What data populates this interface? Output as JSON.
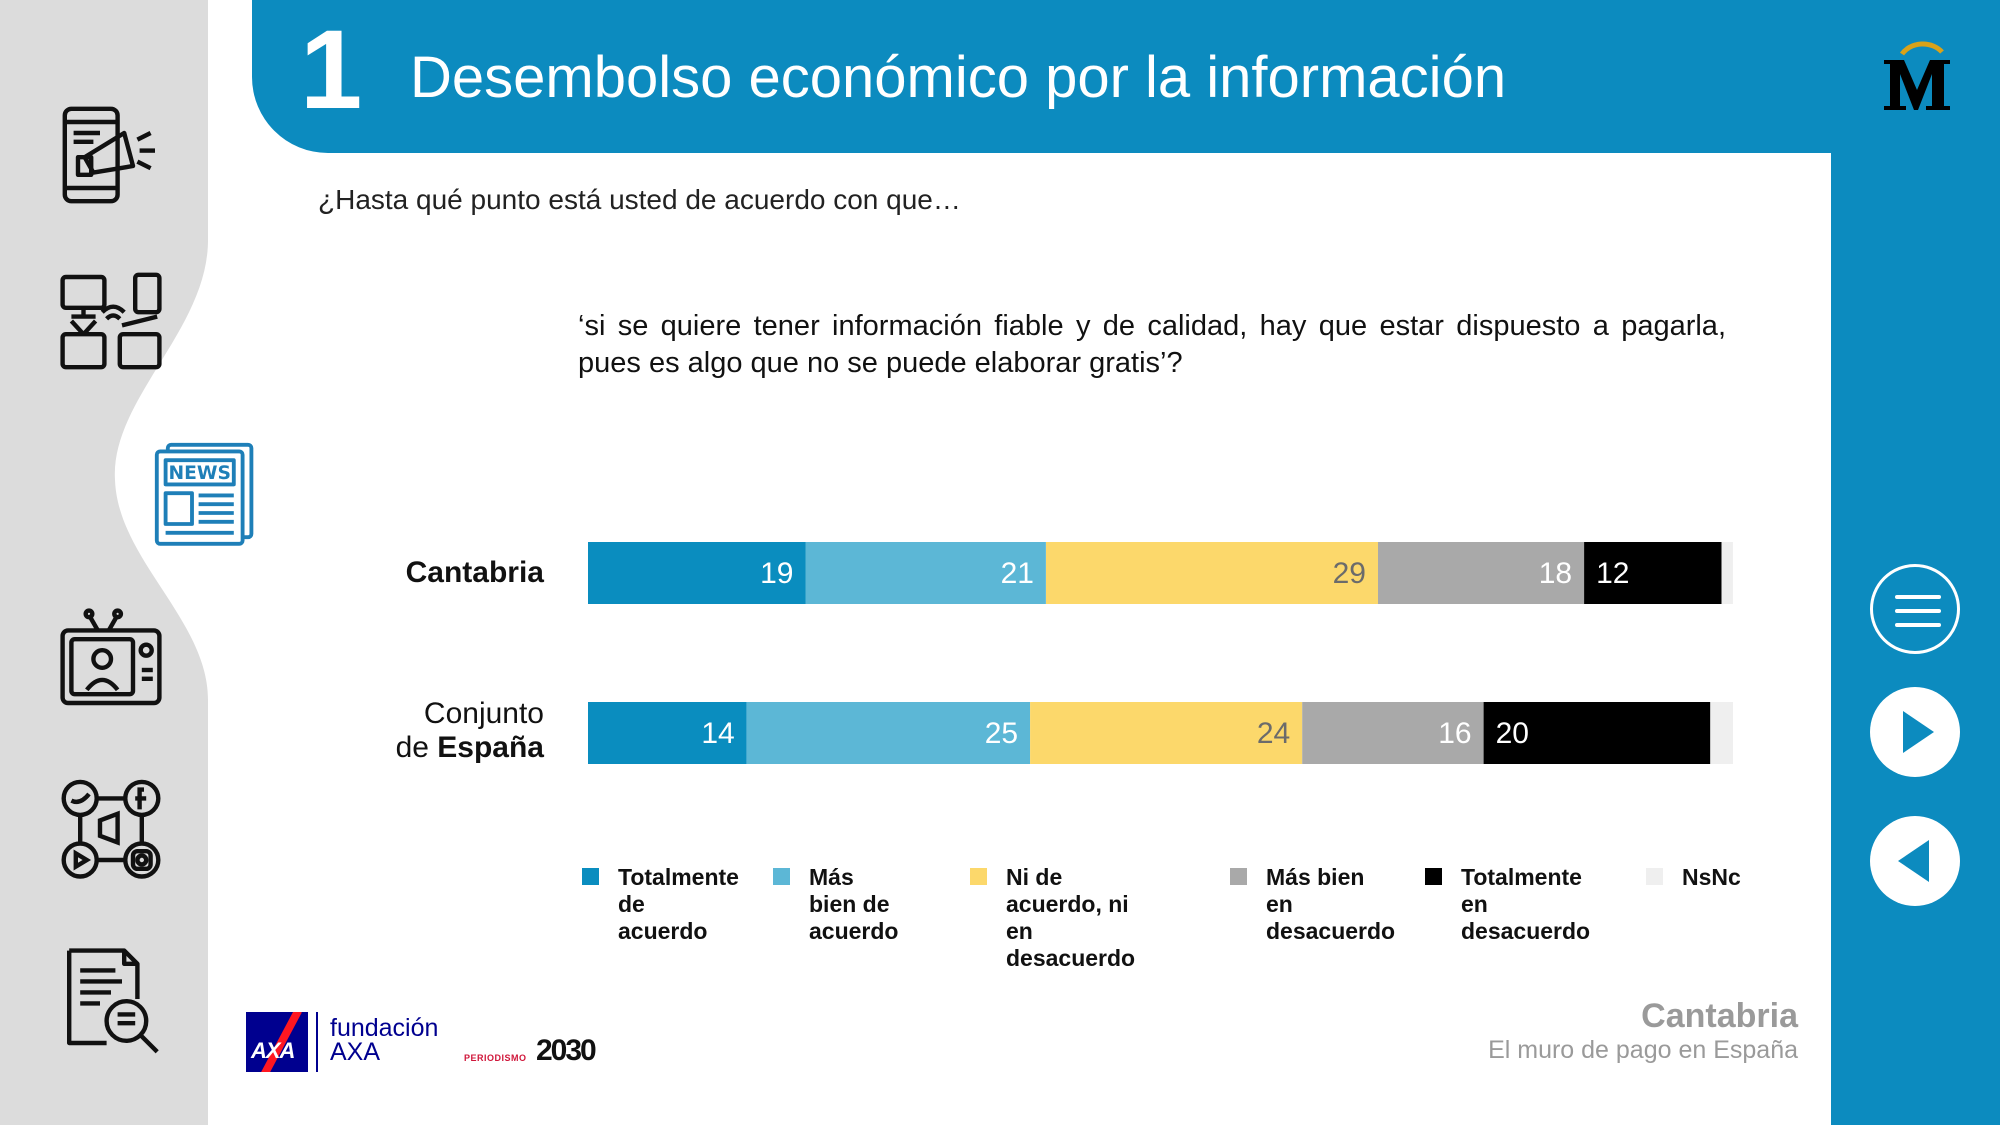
{
  "header": {
    "section_number": "1",
    "title": "Desembolso económico por la información"
  },
  "subtitle": "¿Hasta qué punto está usted de acuerdo con que…",
  "question": "‘si se quiere tener información fiable y de calidad, hay que estar dispuesto a pagarla, pues es algo que no se puede elaborar gratis’?",
  "rows": [
    {
      "label_plain": "",
      "label_bold": "Cantabria"
    },
    {
      "label_plain": "Conjunto de ",
      "label_bold": "España"
    }
  ],
  "chart_data": {
    "type": "bar",
    "orientation": "horizontal",
    "stacked": true,
    "percent_stacked": true,
    "categories": [
      "Cantabria",
      "Conjunto de España"
    ],
    "series": [
      {
        "name": "Totalmente de acuerdo",
        "color": "#0a8dbf",
        "label_color": "#ffffff",
        "values": [
          19,
          14
        ]
      },
      {
        "name": "Más bien de acuerdo",
        "color": "#5cb7d6",
        "label_color": "#ffffff",
        "values": [
          21,
          25
        ]
      },
      {
        "name": "Ni de acuerdo, ni en desacuerdo",
        "color": "#fcd86b",
        "label_color": "#6b6b6b",
        "values": [
          29,
          24
        ]
      },
      {
        "name": "Más bien en desacuerdo",
        "color": "#a9a9a9",
        "label_color": "#ffffff",
        "values": [
          18,
          16
        ]
      },
      {
        "name": "Totalmente en desacuerdo",
        "color": "#000000",
        "label_color": "#ffffff",
        "values": [
          12,
          20
        ]
      },
      {
        "name": "NsNc",
        "color": "#efefef",
        "label_color": "#6b6b6b",
        "values": [
          1,
          2
        ]
      }
    ],
    "legend_position": "bottom",
    "grid": false
  },
  "legend": [
    {
      "label": "Totalmente\nde acuerdo",
      "color": "#0a8dbf"
    },
    {
      "label": "Más bien de\nacuerdo",
      "color": "#5cb7d6"
    },
    {
      "label": "Ni de acuerdo, ni\nen desacuerdo",
      "color": "#fcd86b"
    },
    {
      "label": "Más bien en\ndesacuerdo",
      "color": "#a9a9a9"
    },
    {
      "label": "Totalmente en\ndesacuerdo",
      "color": "#000000"
    },
    {
      "label": "NsNc",
      "color": "#efefef"
    }
  ],
  "footer": {
    "axa_logo_text": "AXA",
    "fundacion_text": "fundación\nAXA",
    "periodismo_small": "PERIODISMO",
    "periodismo_big": "2030",
    "region": "Cantabria",
    "report_title": "El muro de pago en España"
  },
  "sidebar_icons": [
    "phone-megaphone-icon",
    "devices-icon",
    "newspaper-icon",
    "television-icon",
    "social-media-icon",
    "document-search-icon"
  ],
  "nav_icons": [
    "menu-icon",
    "next-arrow-icon",
    "prev-arrow-icon"
  ],
  "colors": {
    "brand_blue": "#0c8bbf",
    "sidebar_grey": "#dcdcdc",
    "newspaper_icon_blue": "#1e7fb8"
  }
}
